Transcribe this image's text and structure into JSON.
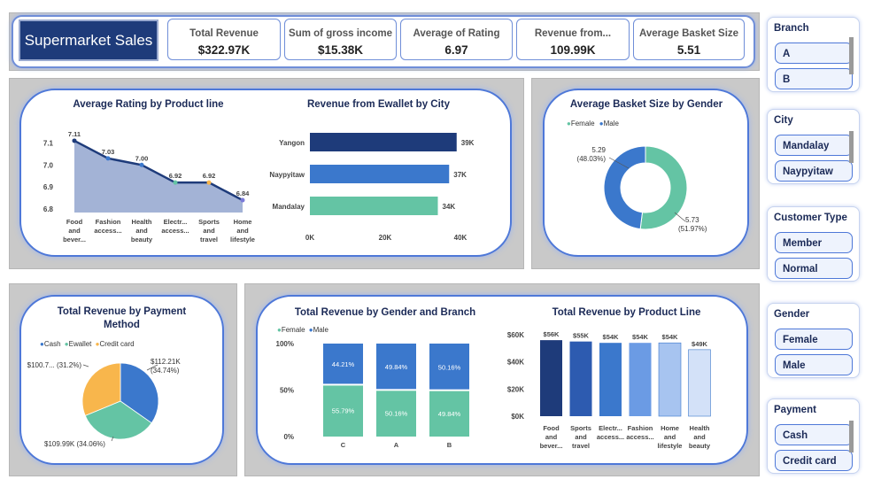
{
  "header": {
    "title": "Supermarket Sales",
    "kpis": [
      {
        "label": "Total Revenue",
        "value": "$322.97K"
      },
      {
        "label": "Sum of gross income",
        "value": "$15.38K"
      },
      {
        "label": "Average of Rating",
        "value": "6.97"
      },
      {
        "label": "Revenue from...",
        "value": "109.99K"
      },
      {
        "label": "Average Basket Size",
        "value": "5.51"
      }
    ]
  },
  "colors": {
    "navy": "#1e3b7a",
    "blue": "#3b78cc",
    "teal": "#64c4a4",
    "orange": "#f8b64c",
    "area": "#a3b3d6"
  },
  "rating_chart": {
    "title": "Average Rating by Product line",
    "y_ticks": [
      "7.1",
      "7.0",
      "6.9",
      "6.8"
    ],
    "ylim": [
      6.8,
      7.15
    ],
    "categories": [
      [
        "Food",
        "and",
        "bever..."
      ],
      [
        "Fashion",
        "access..."
      ],
      [
        "Health",
        "and",
        "beauty"
      ],
      [
        "Electr...",
        "access..."
      ],
      [
        "Sports",
        "and",
        "travel"
      ],
      [
        "Home",
        "and",
        "lifestyle"
      ]
    ],
    "values": [
      7.11,
      7.03,
      7.0,
      6.92,
      6.92,
      6.84
    ],
    "labels": [
      "7.11",
      "7.03",
      "7.00",
      "6.92",
      "6.92",
      "6.84"
    ]
  },
  "ewallet_chart": {
    "title": "Revenue from Ewallet by City",
    "cities": [
      "Yangon",
      "Naypyitaw",
      "Mandalay"
    ],
    "values": [
      39,
      37,
      34
    ],
    "labels": [
      "39K",
      "37K",
      "34K"
    ],
    "x_ticks": [
      "0K",
      "20K",
      "40K"
    ],
    "xmax": 40
  },
  "basket_chart": {
    "title": "Average Basket Size by Gender",
    "legend": [
      "Female",
      "Male"
    ],
    "values": [
      5.73,
      5.29
    ],
    "label_female": [
      "5.73",
      "(51.97%)"
    ],
    "label_male": [
      "5.29",
      "(48.03%)"
    ]
  },
  "payment_chart": {
    "title_line1": "Total Revenue by Payment",
    "title_line2": "Method",
    "legend": [
      "Cash",
      "Ewallet",
      "Credit card"
    ],
    "values": [
      112.21,
      109.99,
      100.77
    ],
    "label_cash": [
      "$112.21K",
      "(34.74%)"
    ],
    "label_ewallet": "$109.99K (34.06%)",
    "label_credit": "$100.7... (31.2%)"
  },
  "gender_branch_chart": {
    "title": "Total Revenue by Gender and Branch",
    "legend": [
      "Female",
      "Male"
    ],
    "y_ticks": [
      "100%",
      "50%",
      "0%"
    ],
    "branches": [
      "C",
      "A",
      "B"
    ],
    "female_pct": [
      55.79,
      50.16,
      49.84
    ],
    "male_pct": [
      44.21,
      49.84,
      50.16
    ],
    "female_labels": [
      "55.79%",
      "50.16%",
      "49.84%"
    ],
    "male_labels": [
      "44.21%",
      "49.84%",
      "50.16%"
    ]
  },
  "product_revenue_chart": {
    "title": "Total Revenue by Product Line",
    "y_ticks": [
      "$60K",
      "$40K",
      "$20K",
      "$0K"
    ],
    "ymax": 60,
    "values": [
      56,
      55,
      54,
      54,
      54,
      49
    ],
    "labels": [
      "$56K",
      "$55K",
      "$54K",
      "$54K",
      "$54K",
      "$49K"
    ],
    "bar_colors": [
      "#1e3b7a",
      "#2d5bb0",
      "#3b78cc",
      "#6b9be4",
      "#a7c4f0",
      "#d3e1f8"
    ],
    "categories": [
      [
        "Food",
        "and",
        "bever..."
      ],
      [
        "Sports",
        "and",
        "travel"
      ],
      [
        "Electr...",
        "access..."
      ],
      [
        "Fashion",
        "access..."
      ],
      [
        "Home",
        "and",
        "lifestyle"
      ],
      [
        "Health",
        "and",
        "beauty"
      ]
    ]
  },
  "slicers": [
    {
      "title": "Branch",
      "items": [
        "A",
        "B"
      ]
    },
    {
      "title": "City",
      "items": [
        "Mandalay",
        "Naypyitaw"
      ]
    },
    {
      "title": "Customer Type",
      "items": [
        "Member",
        "Normal"
      ]
    },
    {
      "title": "Gender",
      "items": [
        "Female",
        "Male"
      ]
    },
    {
      "title": "Payment",
      "items": [
        "Cash",
        "Credit card"
      ]
    }
  ]
}
